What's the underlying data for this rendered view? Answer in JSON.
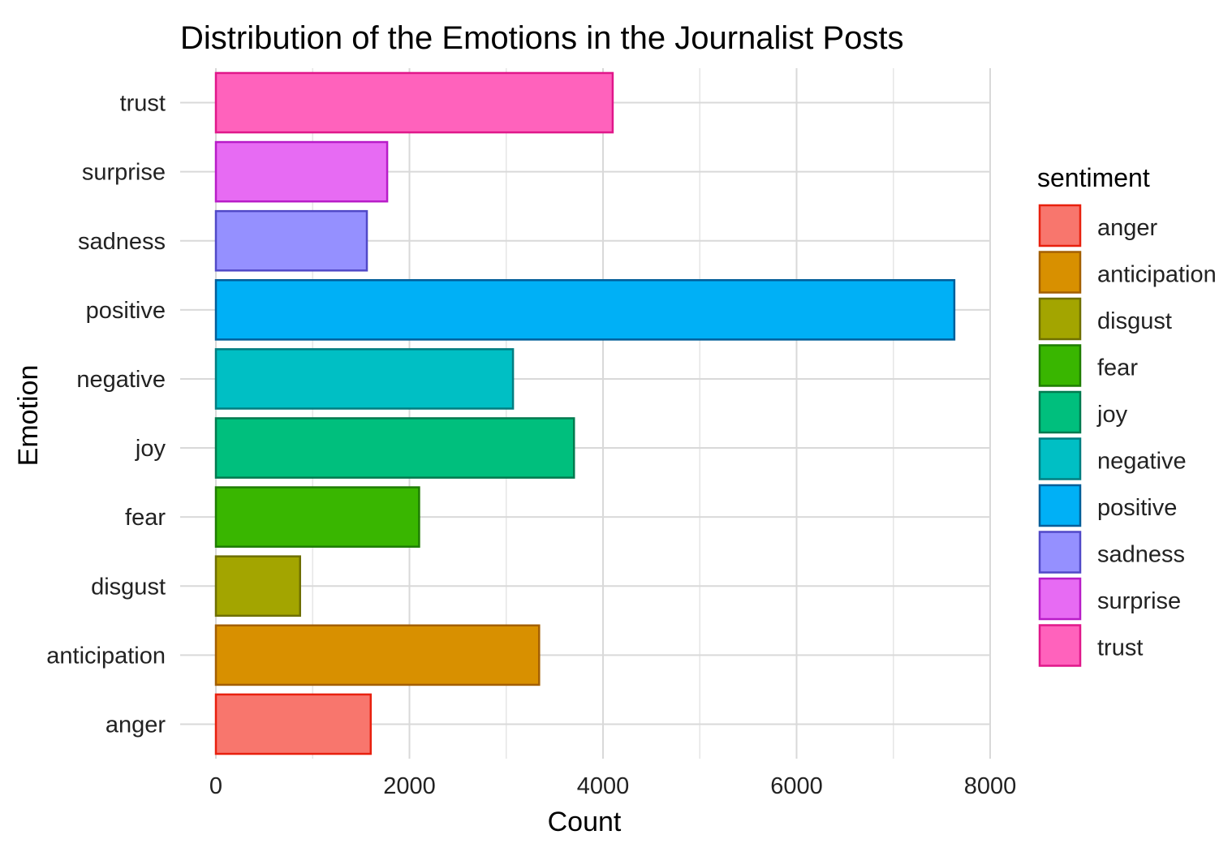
{
  "chart_data": {
    "type": "bar",
    "orientation": "horizontal",
    "title": "Distribution of the Emotions in the Journalist Posts",
    "xlabel": "Count",
    "ylabel": "Emotion",
    "categories": [
      "anger",
      "anticipation",
      "disgust",
      "fear",
      "joy",
      "negative",
      "positive",
      "sadness",
      "surprise",
      "trust"
    ],
    "values": [
      1600,
      3340,
      870,
      2100,
      3700,
      3070,
      7630,
      1560,
      1770,
      4100
    ],
    "colors": [
      "#F8766D",
      "#D89000",
      "#A3A500",
      "#39B600",
      "#00BF7D",
      "#00BFC4",
      "#00B0F6",
      "#9590FF",
      "#E76BF3",
      "#FF62BC"
    ],
    "border_colors": [
      "#E8200E",
      "#A35F00",
      "#6E6F00",
      "#1E7D00",
      "#007A4F",
      "#007D80",
      "#005E99",
      "#5149C8",
      "#B81CC8",
      "#E0178A"
    ],
    "xlim": [
      0,
      8000
    ],
    "xticks": [
      0,
      2000,
      4000,
      6000,
      8000
    ],
    "xtick_labels": [
      "0",
      "2000",
      "4000",
      "6000",
      "8000"
    ],
    "grid": true,
    "legend": {
      "title": "sentiment",
      "placement": "right",
      "entries": [
        "anger",
        "anticipation",
        "disgust",
        "fear",
        "joy",
        "negative",
        "positive",
        "sadness",
        "surprise",
        "trust"
      ]
    }
  }
}
